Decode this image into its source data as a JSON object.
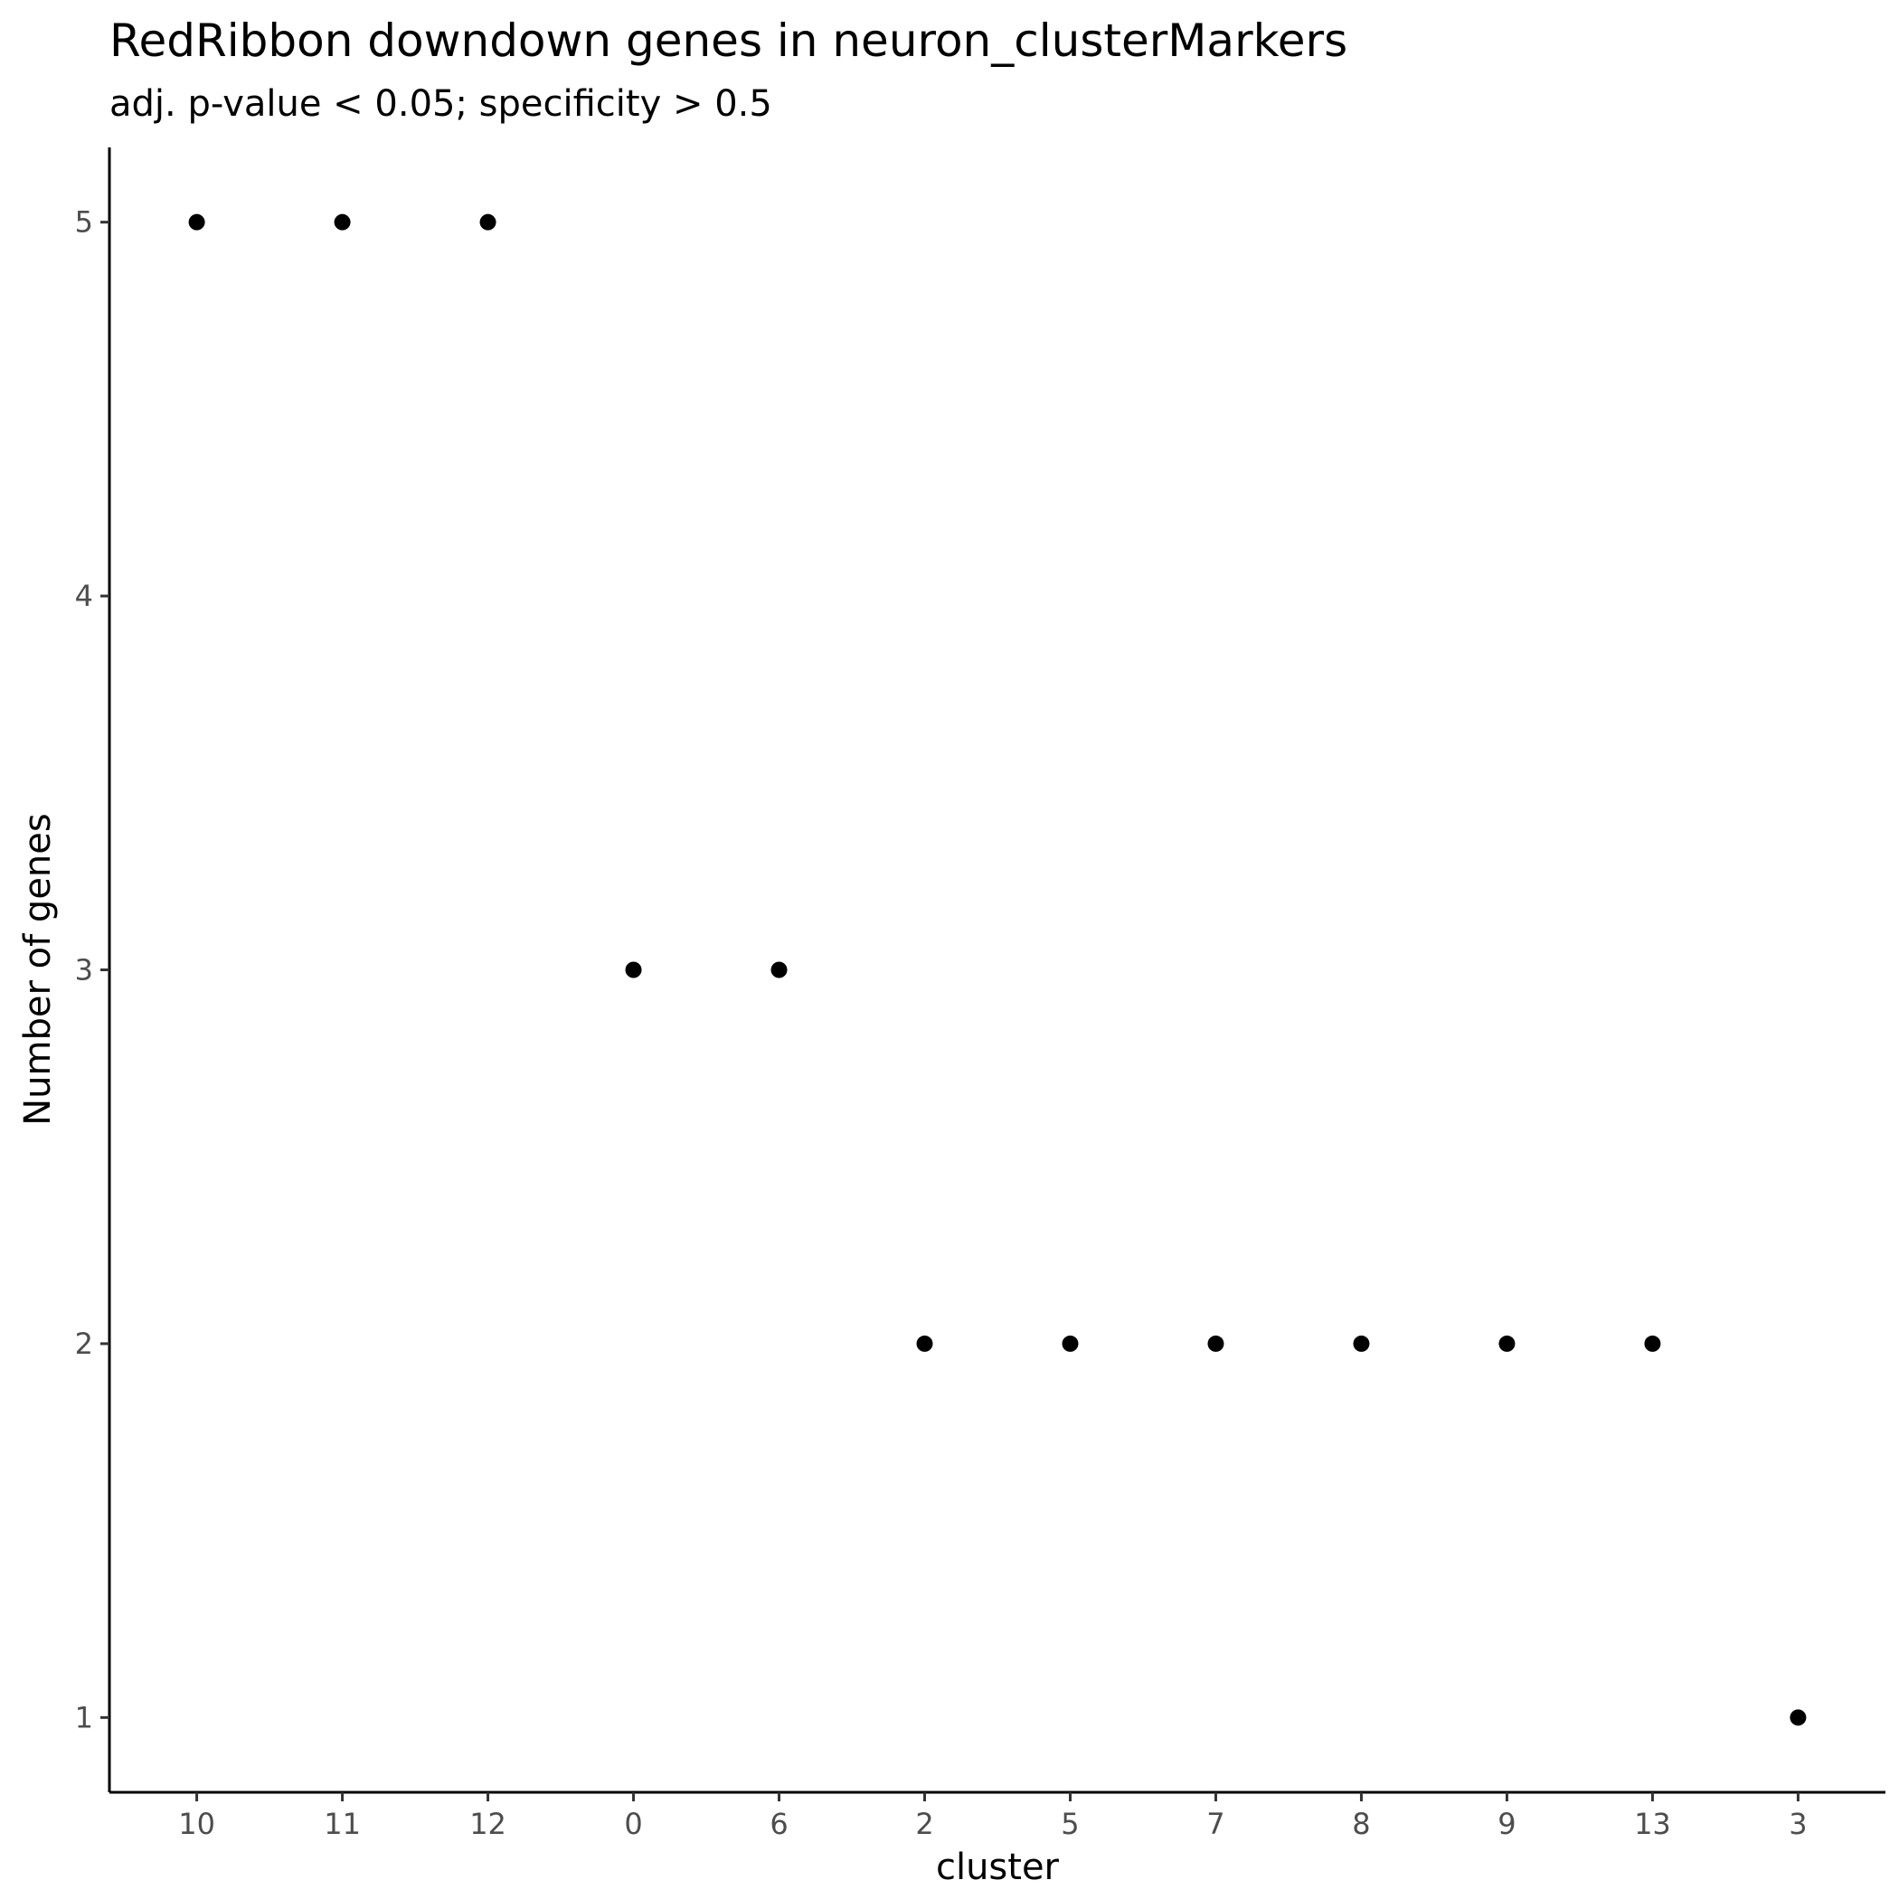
{
  "chart_data": {
    "type": "scatter",
    "title": "RedRibbon downdown genes in neuron_clusterMarkers",
    "subtitle": "adj. p-value < 0.05; specificity > 0.5",
    "xlabel": "cluster",
    "ylabel": "Number of genes",
    "categories": [
      "10",
      "11",
      "12",
      "0",
      "6",
      "2",
      "5",
      "7",
      "8",
      "9",
      "13",
      "3"
    ],
    "values": [
      5,
      5,
      5,
      3,
      3,
      2,
      2,
      2,
      2,
      2,
      2,
      1
    ],
    "y_ticks": [
      1,
      2,
      3,
      4,
      5
    ],
    "ylim": [
      0.8,
      5.2
    ],
    "grid": false,
    "point_color": "#000000"
  }
}
